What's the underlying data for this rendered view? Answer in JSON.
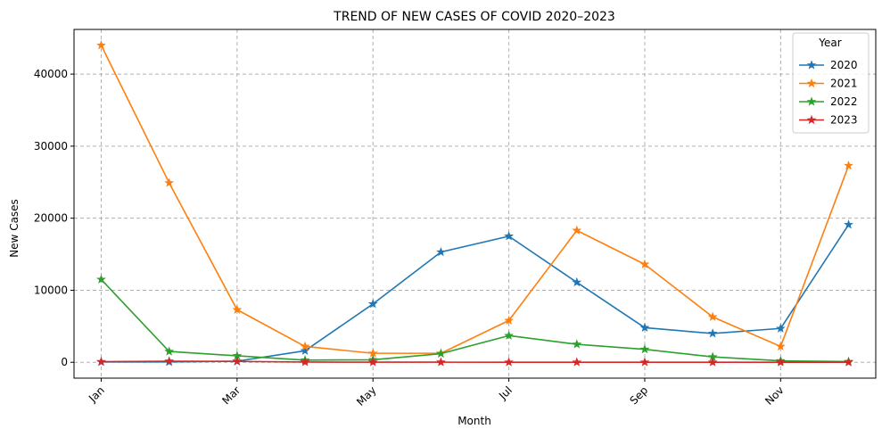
{
  "chart_data": {
    "type": "line",
    "title": "TREND OF NEW CASES OF COVID 2020–2023",
    "xlabel": "Month",
    "ylabel": "New Cases",
    "x": [
      1,
      2,
      3,
      4,
      5,
      6,
      7,
      8,
      9,
      10,
      11,
      12
    ],
    "x_tick_values": [
      1,
      3,
      5,
      7,
      9,
      11
    ],
    "x_tick_labels": [
      "Jan",
      "Mar",
      "May",
      "Jul",
      "Sep",
      "Nov"
    ],
    "y_ticks": [
      0,
      10000,
      20000,
      30000,
      40000
    ],
    "ylim": [
      -2200,
      46200
    ],
    "xlim": [
      0.6,
      12.4
    ],
    "grid": true,
    "legend": {
      "title": "Year",
      "position": "top-right"
    },
    "marker": "star",
    "series": [
      {
        "name": "2020",
        "color": "#1f77b4",
        "values": [
          50,
          50,
          150,
          1600,
          8100,
          15300,
          17500,
          11100,
          4800,
          4000,
          4700,
          19100
        ]
      },
      {
        "name": "2021",
        "color": "#ff7f0e",
        "values": [
          44000,
          24900,
          7300,
          2200,
          1250,
          1250,
          5800,
          18300,
          13600,
          6300,
          2200,
          27300
        ]
      },
      {
        "name": "2022",
        "color": "#2ca02c",
        "values": [
          11500,
          1500,
          900,
          300,
          350,
          1200,
          3700,
          2500,
          1800,
          750,
          200,
          100
        ]
      },
      {
        "name": "2023",
        "color": "#d62728",
        "values": [
          80,
          150,
          120,
          30,
          20,
          15,
          10,
          10,
          10,
          5,
          5,
          5
        ]
      }
    ]
  }
}
